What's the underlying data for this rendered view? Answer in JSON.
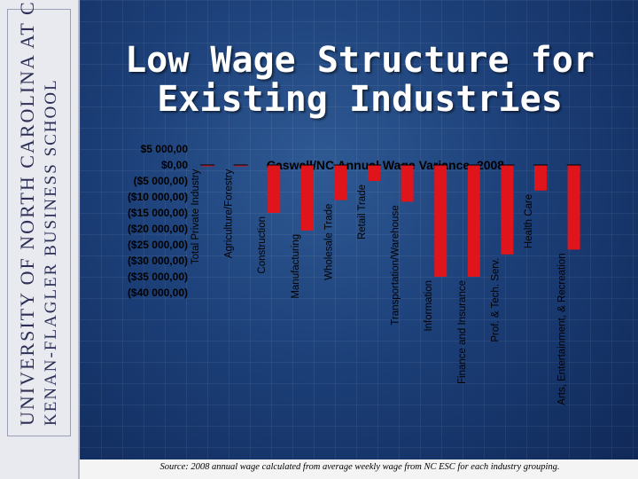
{
  "branding": {
    "line1": "UNIVERSITY OF NORTH CAROLINA AT CHAPEL HILL",
    "line2": "KENAN-FLAGLER BUSINESS SCHOOL"
  },
  "slide_title": "Low Wage Structure for Existing Industries",
  "footnote": "Source: 2008 annual wage calculated from average weekly wage from NC ESC for each industry grouping.",
  "colors": {
    "bar": "#e0141b",
    "text": "#000000",
    "title": "#ffffff"
  },
  "chart_data": {
    "type": "bar",
    "title": "Caswell/NC Annual Wage Variance, 2008",
    "xlabel": "",
    "ylabel": "",
    "ylim": [
      -40000,
      5000
    ],
    "ytick_labels": [
      "$5 000,00",
      "$0,00",
      "($5 000,00)",
      "($10 000,00)",
      "($15 000,00)",
      "($20 000,00)",
      "($25 000,00)",
      "($30 000,00)",
      "($35 000,00)",
      "($40 000,00)"
    ],
    "categories": [
      "Total Private Industry",
      "Agriculture/Forestry",
      "Construction",
      "Manufacturing",
      "Wholesale Trade",
      "Retail Trade",
      "Transportation/Warehouse",
      "Information",
      "Finance and Insurance",
      "Prof. & Tech. Serv.",
      "Health Care",
      "Arts, Entertainment, & Recreation"
    ],
    "values": [
      -200,
      -200,
      -15000,
      -20500,
      -11000,
      -5000,
      -11500,
      -35000,
      -35000,
      -28000,
      -8000,
      -26500
    ],
    "grid": false,
    "legend": "none"
  }
}
